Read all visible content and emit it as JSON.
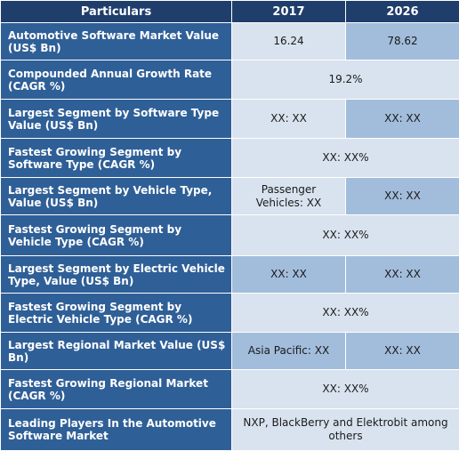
{
  "header": {
    "col1": "Particulars",
    "col2": "2017",
    "col3": "2026"
  },
  "rows": [
    {
      "label": "Automotive Software Market Value (US$ Bn)",
      "v2017": "16.24",
      "v2026": "78.62"
    },
    {
      "label": "Compounded Annual Growth Rate (CAGR %)",
      "value": "19.2%"
    },
    {
      "label": "Largest Segment by Software Type Value (US$ Bn)",
      "v2017": "XX: XX",
      "v2026": "XX:  XX"
    },
    {
      "label": "Fastest Growing Segment by Software Type (CAGR %)",
      "value": "XX:  XX%"
    },
    {
      "label": "Largest Segment by Vehicle Type, Value (US$ Bn)",
      "v2017": "Passenger Vehicles: XX",
      "v2026": "XX:  XX"
    },
    {
      "label": "Fastest Growing Segment by Vehicle Type (CAGR %)",
      "value": "XX:  XX%"
    },
    {
      "label": "Largest Segment by Electric Vehicle Type, Value (US$ Bn)",
      "v2017": "XX: XX",
      "v2026": "XX:  XX"
    },
    {
      "label": "Fastest Growing Segment by Electric Vehicle Type (CAGR %)",
      "value": "XX:  XX%"
    },
    {
      "label": "Largest Regional Market Value (US$ Bn)",
      "v2017": "Asia Pacific: XX",
      "v2026": "XX: XX"
    },
    {
      "label": "Fastest Growing Regional Market (CAGR %)",
      "value": "XX: XX%"
    },
    {
      "label": "Leading Players In the Automotive Software Market",
      "value": "NXP, BlackBerry and Elektrobit among others"
    }
  ]
}
